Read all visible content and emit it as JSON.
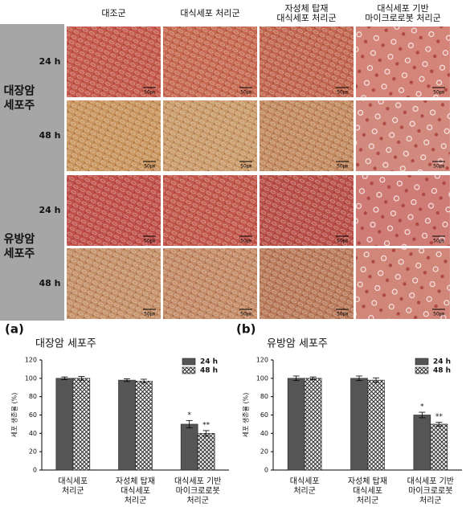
{
  "images": {
    "columns": [
      "대조군",
      "대식세포 처리군",
      "자성체 탑재\n대식세포 처리군",
      "대식세포 기반\n마이크로로봇 처리군"
    ],
    "groups": [
      {
        "label": "대장암\n세포주",
        "rows": [
          "24 h",
          "48 h"
        ]
      },
      {
        "label": "유방암\n세포주",
        "rows": [
          "24 h",
          "48 h"
        ]
      }
    ],
    "scale_bar": "50㎛"
  },
  "chart_data": [
    {
      "type": "bar",
      "panel": "(a)",
      "title": "대장암 세포주",
      "y_label": "세포 생존율 (%)",
      "categories": [
        "대식세포\n처리군",
        "자성체 탑재\n대식세포\n처리군",
        "대식세포 기반\n마이크로로봇\n처리군"
      ],
      "series": [
        {
          "name": "24 h",
          "color": "#555555",
          "values": [
            100,
            98,
            50
          ],
          "errors": [
            1.5,
            1.5,
            4
          ],
          "significance": [
            null,
            null,
            "*"
          ]
        },
        {
          "name": "48 h",
          "color": "#333333",
          "pattern": "crosshatch",
          "values": [
            100,
            97,
            40
          ],
          "errors": [
            2,
            2,
            3
          ],
          "significance": [
            null,
            null,
            "**"
          ]
        }
      ],
      "ylim": [
        0,
        120
      ],
      "yticks": [
        0,
        20,
        40,
        60,
        80,
        100,
        120
      ],
      "legend": "upper right"
    },
    {
      "type": "bar",
      "panel": "(b)",
      "title": "유방암 세포주",
      "y_label": "세포 생존율 (%)",
      "categories": [
        "대식세포\n처리군",
        "자성체 탑재\n대식세포\n처리군",
        "대식세포 기반\n마이크로로봇\n처리군"
      ],
      "series": [
        {
          "name": "24 h",
          "color": "#555555",
          "values": [
            100,
            100,
            60
          ],
          "errors": [
            2.5,
            2.5,
            3
          ],
          "significance": [
            null,
            null,
            "*"
          ]
        },
        {
          "name": "48 h",
          "color": "#333333",
          "pattern": "crosshatch",
          "values": [
            100,
            98,
            50
          ],
          "errors": [
            1.5,
            2.5,
            2
          ],
          "significance": [
            null,
            null,
            "**"
          ]
        }
      ],
      "ylim": [
        0,
        120
      ],
      "yticks": [
        0,
        20,
        40,
        60,
        80,
        100,
        120
      ],
      "legend": "upper right"
    }
  ]
}
